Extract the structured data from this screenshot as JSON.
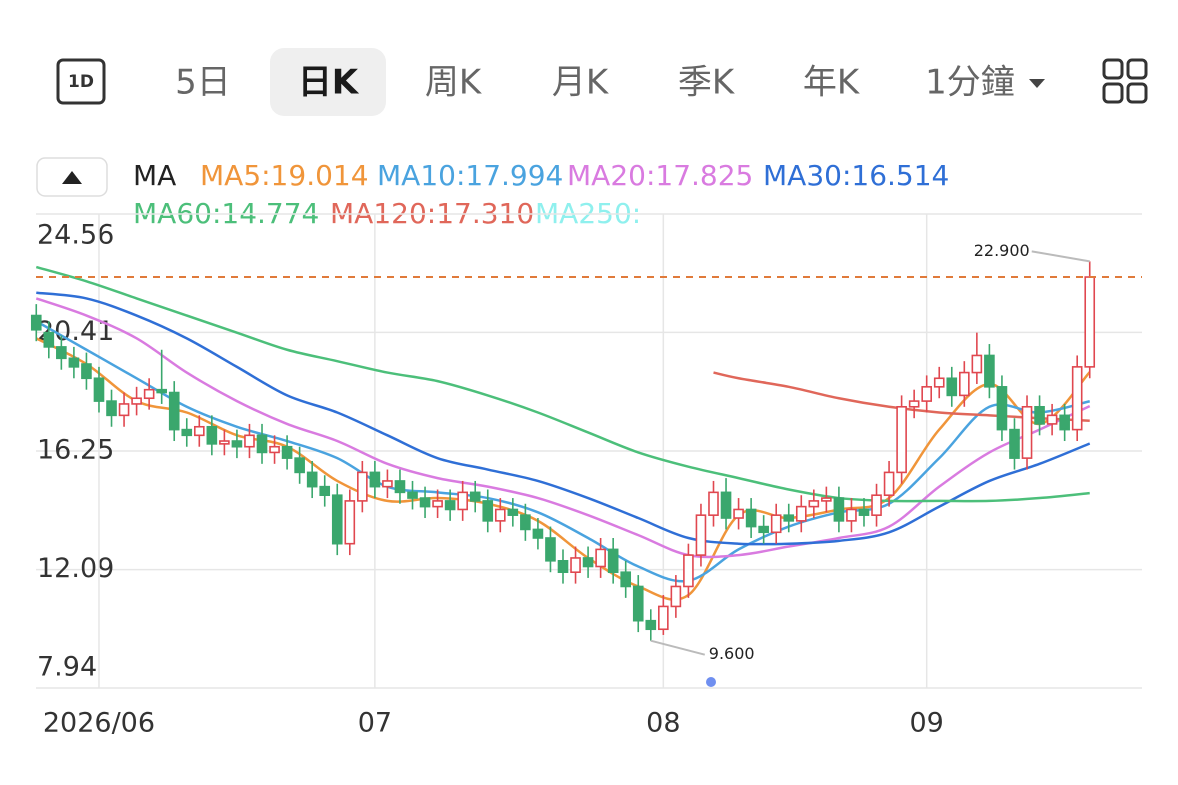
{
  "ui": {
    "icon_label": "1D",
    "tabs": [
      "5日",
      "日K",
      "周K",
      "月K",
      "季K",
      "年K",
      "1分鐘"
    ],
    "active_tab": 1
  },
  "chart_data": {
    "type": "candlestick",
    "indicator": "MA",
    "categories": [
      null,
      null,
      null,
      null,
      null,
      "2026/06",
      null,
      null,
      null,
      null,
      null,
      null,
      null,
      null,
      null,
      null,
      null,
      null,
      null,
      null,
      null,
      null,
      null,
      null,
      null,
      null,
      null,
      "07",
      null,
      null,
      null,
      null,
      null,
      null,
      null,
      null,
      null,
      null,
      null,
      null,
      null,
      null,
      null,
      null,
      null,
      null,
      null,
      null,
      null,
      null,
      "08",
      null,
      null,
      null,
      null,
      null,
      null,
      null,
      null,
      null,
      null,
      null,
      null,
      null,
      null,
      null,
      null,
      null,
      null,
      null,
      null,
      "09",
      null,
      null,
      null,
      null,
      null,
      null,
      null,
      null,
      null,
      null,
      null,
      null,
      null
    ],
    "open": [
      21.0,
      20.4,
      19.9,
      19.5,
      19.3,
      18.8,
      18.0,
      17.5,
      17.9,
      18.1,
      18.4,
      18.3,
      17.0,
      16.8,
      17.1,
      16.5,
      16.6,
      16.4,
      16.8,
      16.2,
      16.4,
      16.0,
      15.5,
      15.0,
      14.7,
      13.0,
      14.5,
      15.5,
      15.0,
      15.2,
      14.8,
      14.6,
      14.3,
      14.5,
      14.2,
      14.8,
      14.5,
      13.8,
      14.2,
      14.0,
      13.5,
      13.2,
      12.4,
      12.0,
      12.5,
      12.2,
      12.8,
      12.0,
      11.5,
      10.3,
      10.0,
      10.8,
      11.5,
      12.6,
      14.0,
      14.8,
      13.9,
      14.2,
      13.6,
      13.4,
      14.0,
      13.8,
      14.3,
      14.5,
      14.6,
      13.8,
      14.2,
      14.0,
      14.7,
      15.5,
      17.8,
      18.0,
      18.5,
      18.8,
      18.2,
      19.0,
      19.6,
      18.5,
      17.0,
      16.0,
      17.8,
      17.2,
      17.5,
      17.0,
      19.2
    ],
    "high": [
      21.4,
      20.8,
      20.3,
      19.9,
      19.7,
      19.2,
      18.4,
      18.3,
      18.5,
      18.8,
      19.8,
      18.7,
      17.4,
      17.5,
      17.5,
      17.0,
      17.0,
      17.2,
      17.2,
      16.8,
      16.8,
      16.4,
      15.9,
      15.4,
      15.1,
      14.9,
      15.9,
      15.9,
      15.6,
      15.6,
      15.2,
      15.0,
      14.9,
      14.9,
      15.2,
      15.2,
      14.9,
      14.6,
      14.6,
      14.4,
      13.9,
      13.6,
      12.8,
      12.9,
      12.9,
      13.2,
      13.2,
      12.4,
      11.9,
      10.7,
      11.2,
      11.9,
      13.0,
      14.4,
      15.2,
      15.3,
      14.6,
      14.6,
      14.0,
      14.4,
      14.4,
      14.7,
      14.9,
      15.0,
      15.0,
      14.6,
      14.6,
      15.1,
      15.9,
      18.2,
      18.4,
      18.9,
      19.2,
      19.2,
      19.4,
      20.4,
      20.0,
      18.9,
      17.4,
      18.2,
      18.2,
      17.9,
      17.9,
      19.6,
      22.9
    ],
    "low": [
      20.1,
      19.5,
      19.1,
      18.8,
      18.4,
      17.6,
      17.1,
      17.1,
      17.5,
      17.7,
      17.9,
      16.6,
      16.4,
      16.4,
      16.1,
      16.1,
      16.0,
      16.0,
      15.8,
      15.8,
      15.6,
      15.1,
      14.6,
      14.3,
      12.6,
      12.6,
      14.1,
      14.6,
      14.6,
      14.4,
      14.2,
      13.9,
      13.9,
      13.8,
      13.8,
      14.1,
      13.4,
      13.4,
      13.6,
      13.1,
      12.8,
      12.0,
      11.6,
      11.6,
      11.8,
      11.8,
      11.6,
      11.1,
      9.9,
      9.6,
      9.8,
      10.4,
      11.1,
      12.2,
      13.6,
      13.5,
      13.5,
      13.2,
      13.0,
      13.0,
      13.4,
      13.4,
      13.9,
      14.1,
      13.4,
      13.4,
      13.6,
      13.6,
      14.3,
      15.1,
      17.4,
      17.6,
      18.1,
      17.8,
      17.8,
      18.6,
      18.1,
      16.6,
      15.6,
      15.6,
      16.8,
      16.8,
      16.6,
      16.6,
      18.8
    ],
    "close": [
      20.5,
      19.9,
      19.5,
      19.2,
      18.8,
      18.0,
      17.5,
      17.9,
      18.1,
      18.4,
      18.3,
      17.0,
      16.8,
      17.1,
      16.5,
      16.6,
      16.4,
      16.8,
      16.2,
      16.4,
      16.0,
      15.5,
      15.0,
      14.7,
      13.0,
      14.5,
      15.5,
      15.0,
      15.2,
      14.8,
      14.6,
      14.3,
      14.5,
      14.2,
      14.8,
      14.5,
      13.8,
      14.2,
      14.0,
      13.5,
      13.2,
      12.4,
      12.0,
      12.5,
      12.2,
      12.8,
      12.0,
      11.5,
      10.3,
      10.0,
      10.8,
      11.5,
      12.6,
      14.0,
      14.8,
      13.9,
      14.2,
      13.6,
      13.4,
      14.0,
      13.8,
      14.3,
      14.5,
      14.6,
      13.8,
      14.2,
      14.0,
      14.7,
      15.5,
      17.8,
      18.0,
      18.5,
      18.8,
      18.2,
      19.0,
      19.6,
      18.5,
      17.0,
      16.0,
      17.8,
      17.2,
      17.5,
      17.0,
      19.2,
      22.35
    ],
    "series": [
      {
        "name": "MA5:19.014",
        "color": "#f0953a",
        "x": [
          0,
          4,
          8,
          12,
          16,
          20,
          24,
          28,
          32,
          36,
          40,
          44,
          48,
          52,
          56,
          60,
          64,
          68,
          72,
          76,
          80,
          84
        ],
        "values": [
          20.2,
          19.3,
          18.0,
          17.6,
          16.8,
          16.4,
          15.2,
          14.5,
          14.6,
          14.4,
          13.8,
          12.5,
          11.5,
          11.2,
          14.0,
          13.9,
          14.2,
          14.6,
          17.0,
          18.6,
          17.2,
          19.014
        ]
      },
      {
        "name": "MA10:17.994",
        "color": "#4aa3df",
        "x": [
          0,
          4,
          8,
          12,
          16,
          20,
          24,
          28,
          32,
          36,
          40,
          44,
          48,
          52,
          56,
          60,
          64,
          68,
          72,
          76,
          80,
          84
        ],
        "values": [
          20.8,
          19.8,
          18.8,
          17.8,
          17.1,
          16.6,
          16.0,
          15.0,
          14.8,
          14.6,
          14.1,
          13.2,
          12.2,
          11.7,
          12.8,
          13.6,
          14.1,
          14.4,
          16.0,
          17.8,
          17.6,
          17.994
        ]
      },
      {
        "name": "MA20:17.825",
        "color": "#d97be0",
        "x": [
          0,
          4,
          8,
          12,
          16,
          20,
          24,
          28,
          32,
          36,
          40,
          44,
          48,
          52,
          56,
          60,
          64,
          68,
          72,
          76,
          80,
          84
        ],
        "values": [
          21.6,
          21.0,
          20.2,
          19.0,
          18.0,
          17.2,
          16.6,
          15.8,
          15.3,
          15.0,
          14.6,
          14.0,
          13.3,
          12.6,
          12.6,
          12.9,
          13.2,
          13.6,
          15.0,
          16.2,
          17.0,
          17.825
        ]
      },
      {
        "name": "MA30:16.514",
        "color": "#2f6fd6",
        "x": [
          0,
          4,
          8,
          12,
          16,
          20,
          24,
          28,
          32,
          36,
          40,
          44,
          48,
          52,
          56,
          60,
          64,
          68,
          72,
          76,
          80,
          84
        ],
        "values": [
          21.8,
          21.6,
          21.0,
          20.2,
          19.2,
          18.2,
          17.6,
          16.8,
          16.0,
          15.6,
          15.2,
          14.6,
          13.9,
          13.2,
          13.0,
          13.0,
          13.1,
          13.4,
          14.3,
          15.2,
          15.8,
          16.514
        ]
      },
      {
        "name": "MA60:14.774",
        "color": "#4cbf7a",
        "x": [
          0,
          4,
          8,
          12,
          16,
          20,
          24,
          28,
          32,
          36,
          40,
          44,
          48,
          52,
          56,
          60,
          64,
          68,
          72,
          76,
          80,
          84
        ],
        "values": [
          22.7,
          22.2,
          21.6,
          21.0,
          20.4,
          19.8,
          19.4,
          19.0,
          18.7,
          18.2,
          17.6,
          16.9,
          16.2,
          15.7,
          15.3,
          14.9,
          14.6,
          14.5,
          14.5,
          14.5,
          14.6,
          14.774
        ]
      },
      {
        "name": "MA120:17.310",
        "color": "#e0675a",
        "x": [
          54,
          56,
          60,
          64,
          68,
          72,
          76,
          80,
          84
        ],
        "values": [
          19.0,
          18.8,
          18.5,
          18.1,
          17.8,
          17.6,
          17.5,
          17.4,
          17.31
        ]
      },
      {
        "name": "MA250:",
        "color": "#8ff0ee"
      }
    ],
    "ylim": [
      7.94,
      24.56
    ],
    "yticks": [
      7.94,
      12.09,
      16.25,
      20.41,
      24.56
    ],
    "grid": true,
    "last_price": 22.35,
    "last_price_color": "#e07a3a",
    "up_color": "#e0474f",
    "down_color": "#3aa76d",
    "annotations": [
      {
        "label": "22.900",
        "value": 22.9,
        "index": 84
      },
      {
        "label": "9.600",
        "value": 9.6,
        "index": 49
      }
    ]
  }
}
